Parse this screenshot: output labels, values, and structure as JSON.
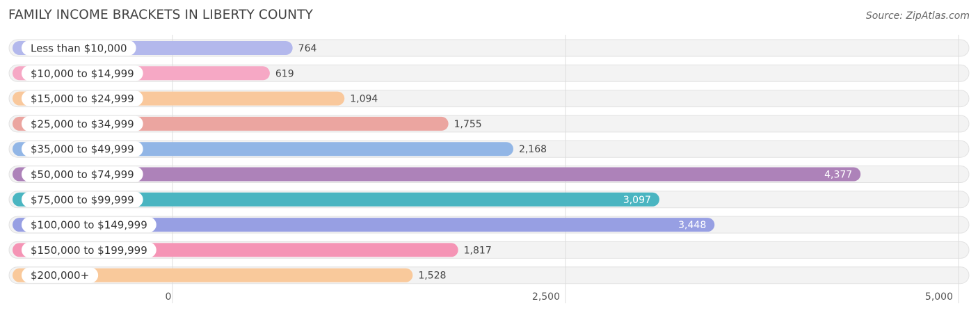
{
  "chart_data": {
    "type": "bar",
    "orientation": "horizontal",
    "title": "FAMILY INCOME BRACKETS IN LIBERTY COUNTY",
    "source": "Source: ZipAtlas.com",
    "categories": [
      "Less than $10,000",
      "$10,000 to $14,999",
      "$15,000 to $24,999",
      "$25,000 to $34,999",
      "$35,000 to $49,999",
      "$50,000 to $74,999",
      "$75,000 to $99,999",
      "$100,000 to $149,999",
      "$150,000 to $199,999",
      "$200,000+"
    ],
    "values": [
      764,
      619,
      1094,
      1755,
      2168,
      4377,
      3097,
      3448,
      1817,
      1528
    ],
    "value_labels": [
      "764",
      "619",
      "1,094",
      "1,755",
      "2,168",
      "4,377",
      "3,097",
      "3,448",
      "1,817",
      "1,528"
    ],
    "colors": [
      "#b3b8ec",
      "#f6a8c5",
      "#f9c89c",
      "#eba5a0",
      "#92b6e6",
      "#ad82b9",
      "#4ab5c1",
      "#979fe3",
      "#f594b5",
      "#f9c99b"
    ],
    "xlim": [
      0,
      5000
    ],
    "xticks": [
      0,
      2500,
      5000
    ],
    "xtick_labels": [
      "0",
      "2,500",
      "5,000"
    ],
    "grid": true,
    "xlabel": "",
    "ylabel": ""
  }
}
